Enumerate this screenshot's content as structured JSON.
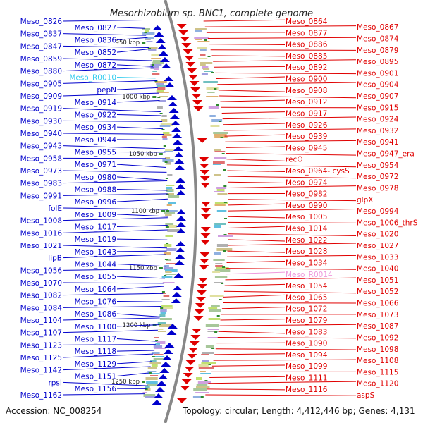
{
  "title": "Mesorhizobium sp. BNC1, complete genome",
  "accession": "Accession: NC_008254",
  "topology": "Topology: circular; Length: 4,412,446 bp; Genes: 4,131",
  "colors": {
    "forward": "#0000cc",
    "reverse": "#e00000",
    "rna_forward": "#33ccee",
    "rna_reverse": "#ee99dd",
    "backbone": "#888888",
    "tick": "#2e8b2e"
  },
  "scale_ticks": [
    "950 kbp",
    "1000 kbp",
    "1050 kbp",
    "1100 kbp",
    "1150 kbp",
    "1200 kbp",
    "1250 kbp"
  ],
  "left_labels": [
    "Meso_0826",
    "Meso_0827",
    "Meso_0837",
    "Meso_0836",
    "Meso_0847",
    "Meso_0852",
    "Meso_0859",
    "Meso_0872",
    "Meso_0880",
    "Meso_R0010",
    "Meso_0905",
    "pepN",
    "Meso_0909",
    "Meso_0914",
    "Meso_0919",
    "Meso_0922",
    "Meso_0930",
    "Meso_0934",
    "Meso_0940",
    "Meso_0944",
    "Meso_0943",
    "Meso_0955",
    "Meso_0958",
    "Meso_0971",
    "Meso_0973",
    "Meso_0980",
    "Meso_0983",
    "Meso_0988",
    "Meso_0991",
    "Meso_0996",
    "folE",
    "Meso_1009",
    "Meso_1008",
    "Meso_1017",
    "Meso_1016",
    "Meso_1019",
    "Meso_1021",
    "Meso_1043",
    "lipB",
    "Meso_1044",
    "Meso_1056",
    "Meso_1055",
    "Meso_1070",
    "Meso_1064",
    "Meso_1082",
    "Meso_1076",
    "Meso_1084",
    "Meso_1086",
    "Meso_1104",
    "Meso_1100",
    "Meso_1107",
    "Meso_1117",
    "Meso_1123",
    "Meso_1118",
    "Meso_1125",
    "Meso_1129",
    "Meso_1142",
    "Meso_1151",
    "rpsI",
    "Meso_1156",
    "Meso_1162"
  ],
  "right_labels": [
    "Meso_0864",
    "Meso_0867",
    "Meso_0877",
    "Meso_0874",
    "Meso_0886",
    "Meso_0879",
    "Meso_0885",
    "Meso_0895",
    "Meso_0892",
    "Meso_0901",
    "Meso_0900",
    "Meso_0904",
    "Meso_0908",
    "Meso_0907",
    "Meso_0912",
    "Meso_0915",
    "Meso_0917",
    "Meso_0924",
    "Meso_0926",
    "Meso_0932",
    "Meso_0939",
    "Meso_0941",
    "Meso_0945",
    "Meso_0947_era",
    "recO",
    "Meso_0954",
    "Meso_0964_cysS",
    "Meso_0972",
    "Meso_0974",
    "Meso_0978",
    "Meso_0982",
    "glpX",
    "Meso_0990",
    "Meso_0994",
    "Meso_1005",
    "Meso_1006_thrS",
    "Meso_1014",
    "Meso_1020",
    "Meso_1022",
    "Meso_1027",
    "Meso_1028",
    "Meso_1033",
    "Meso_1034",
    "Meso_1040",
    "Meso_R0014",
    "Meso_1051",
    "Meso_1054",
    "Meso_1052",
    "Meso_1065",
    "Meso_1066",
    "Meso_1072",
    "Meso_1073",
    "Meso_1079",
    "Meso_1087",
    "Meso_1083",
    "Meso_1092",
    "Meso_1090",
    "Meso_1098",
    "Meso_1094",
    "Meso_1108",
    "Meso_1099",
    "Meso_1115",
    "Meso_1111",
    "Meso_1120",
    "Meso_1116",
    "aspS"
  ]
}
